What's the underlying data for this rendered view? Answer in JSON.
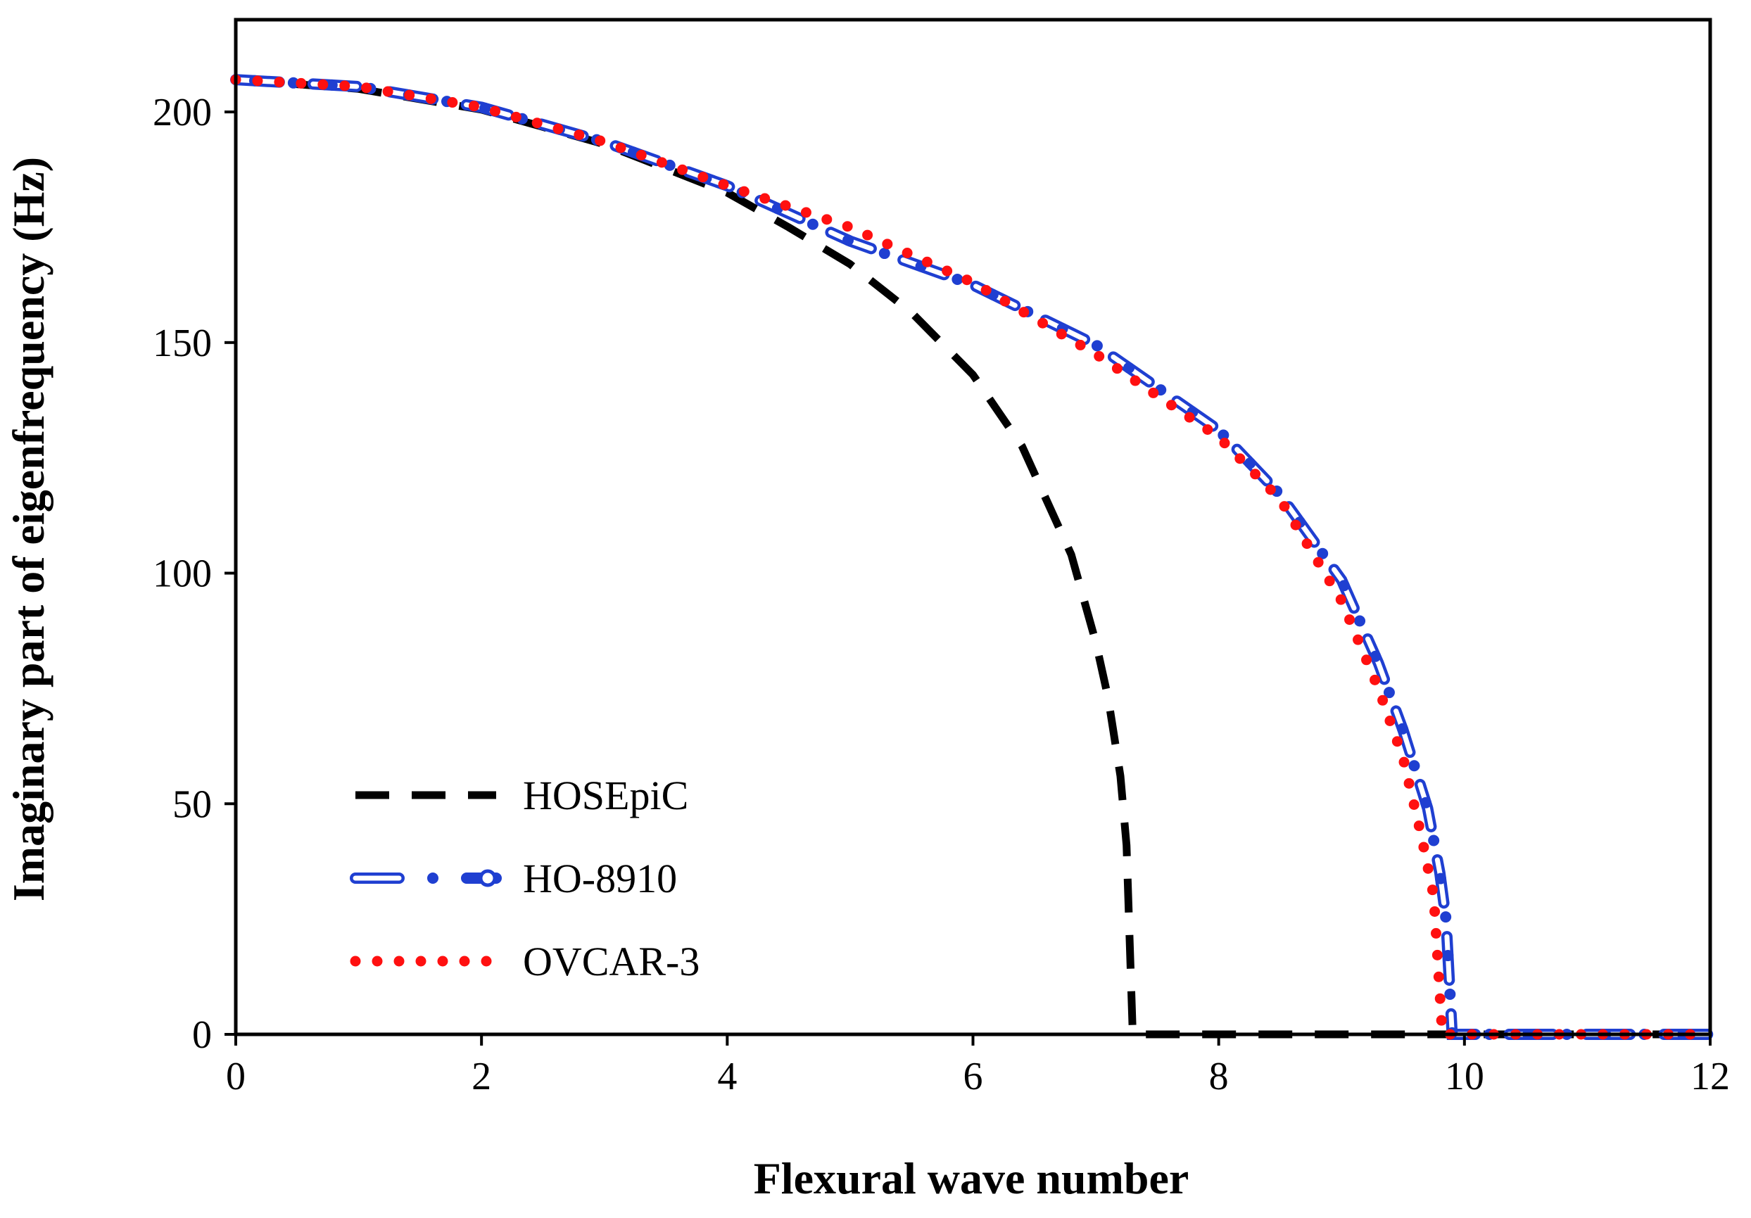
{
  "chart_data": {
    "type": "line",
    "title": "",
    "xlabel": "Flexural wave number",
    "ylabel": "Imaginary part of eigenfrequency (Hz)",
    "xlim": [
      0,
      12
    ],
    "ylim": [
      0,
      220
    ],
    "xticks": [
      0,
      2,
      4,
      6,
      8,
      10,
      12
    ],
    "yticks": [
      0,
      50,
      100,
      150,
      200
    ],
    "xtick_labels": [
      "0",
      "2",
      "4",
      "6",
      "8",
      "10",
      "12"
    ],
    "ytick_labels": [
      "0",
      "50",
      "100",
      "150",
      "200"
    ],
    "grid": false,
    "legend_position": "bottom-left",
    "series": [
      {
        "name": "HOSEpiC",
        "color": "#000000",
        "style": "dashed",
        "f0": 207,
        "cutoff": 7.3,
        "x": [
          0,
          1,
          2,
          3,
          4,
          4.5,
          5,
          5.5,
          6,
          6.4,
          6.8,
          7.0,
          7.1,
          7.2,
          7.25,
          7.3,
          12
        ],
        "y": [
          207,
          205,
          200.5,
          193,
          182.5,
          175,
          167,
          156.5,
          143,
          127.5,
          104,
          85,
          73,
          56,
          41,
          0,
          0
        ]
      },
      {
        "name": "HO-8910",
        "color": "#1f3fd1",
        "style": "dash-dot",
        "f0": 207,
        "cutoff": 9.9,
        "x": [
          0,
          1,
          2,
          3,
          4,
          5,
          6,
          7,
          8,
          8.5,
          9,
          9.3,
          9.5,
          9.7,
          9.8,
          9.85,
          9.9,
          12
        ],
        "y": [
          207,
          205.5,
          201,
          193.5,
          184,
          172,
          162.5,
          149.5,
          131,
          117,
          98.5,
          80.5,
          66,
          49,
          35,
          25,
          0,
          0
        ]
      },
      {
        "name": "OVCAR-3",
        "color": "#ff1010",
        "style": "dotted",
        "f0": 207,
        "cutoff": 9.82,
        "x": [
          0,
          1,
          2,
          3,
          4,
          5,
          6,
          7,
          8,
          8.5,
          9,
          9.3,
          9.5,
          9.65,
          9.75,
          9.82,
          12
        ],
        "y": [
          207,
          205.5,
          201,
          193.5,
          184,
          175,
          163,
          147.5,
          129.5,
          116,
          94,
          75,
          60,
          43,
          30,
          0,
          0
        ]
      }
    ]
  }
}
